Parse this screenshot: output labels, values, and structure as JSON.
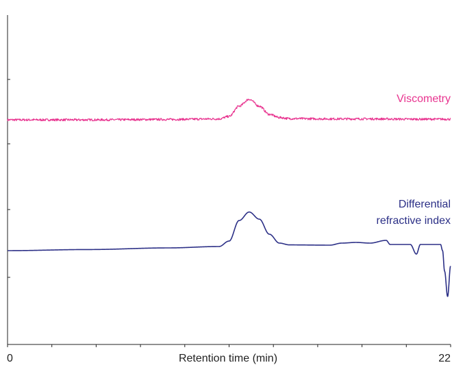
{
  "chart_data": {
    "type": "line",
    "xlabel": "Retention time (min)",
    "ylabel": "",
    "xlim": [
      0,
      22
    ],
    "x_tick_labels": [
      "0",
      "22"
    ],
    "grid": false,
    "legend": "inline labels at right",
    "series": [
      {
        "name": "Viscometry",
        "label_lines": [
          "Viscometry"
        ],
        "color": "#e8338f",
        "points": [
          [
            0,
            0.05
          ],
          [
            4,
            0.05
          ],
          [
            8,
            0.08
          ],
          [
            10.5,
            0.12
          ],
          [
            11,
            0.3
          ],
          [
            11.5,
            1.05
          ],
          [
            12,
            1.55
          ],
          [
            12.5,
            1.05
          ],
          [
            13,
            0.45
          ],
          [
            13.5,
            0.22
          ],
          [
            14,
            0.14
          ],
          [
            16,
            0.12
          ],
          [
            18,
            0.12
          ],
          [
            20,
            0.1
          ],
          [
            22,
            0.1
          ]
        ]
      },
      {
        "name": "Differential refractive index",
        "label_lines": [
          "Differential",
          "refractive index"
        ],
        "color": "#2b2f86",
        "points": [
          [
            0,
            0
          ],
          [
            4,
            0.08
          ],
          [
            8,
            0.2
          ],
          [
            10.5,
            0.3
          ],
          [
            11,
            0.7
          ],
          [
            11.5,
            2.2
          ],
          [
            12,
            2.82
          ],
          [
            12.5,
            2.3
          ],
          [
            13,
            1.2
          ],
          [
            13.5,
            0.55
          ],
          [
            14,
            0.42
          ],
          [
            16,
            0.4
          ],
          [
            16.6,
            0.55
          ],
          [
            17.3,
            0.6
          ],
          [
            18,
            0.55
          ],
          [
            18.8,
            0.75
          ],
          [
            19,
            0.45
          ],
          [
            20,
            0.45
          ],
          [
            20.3,
            -0.25
          ],
          [
            20.5,
            0.45
          ],
          [
            21.5,
            0.45
          ],
          [
            21.6,
            0
          ],
          [
            21.7,
            -1.5
          ],
          [
            21.85,
            -3.35
          ],
          [
            22,
            -1.1
          ]
        ]
      }
    ]
  }
}
